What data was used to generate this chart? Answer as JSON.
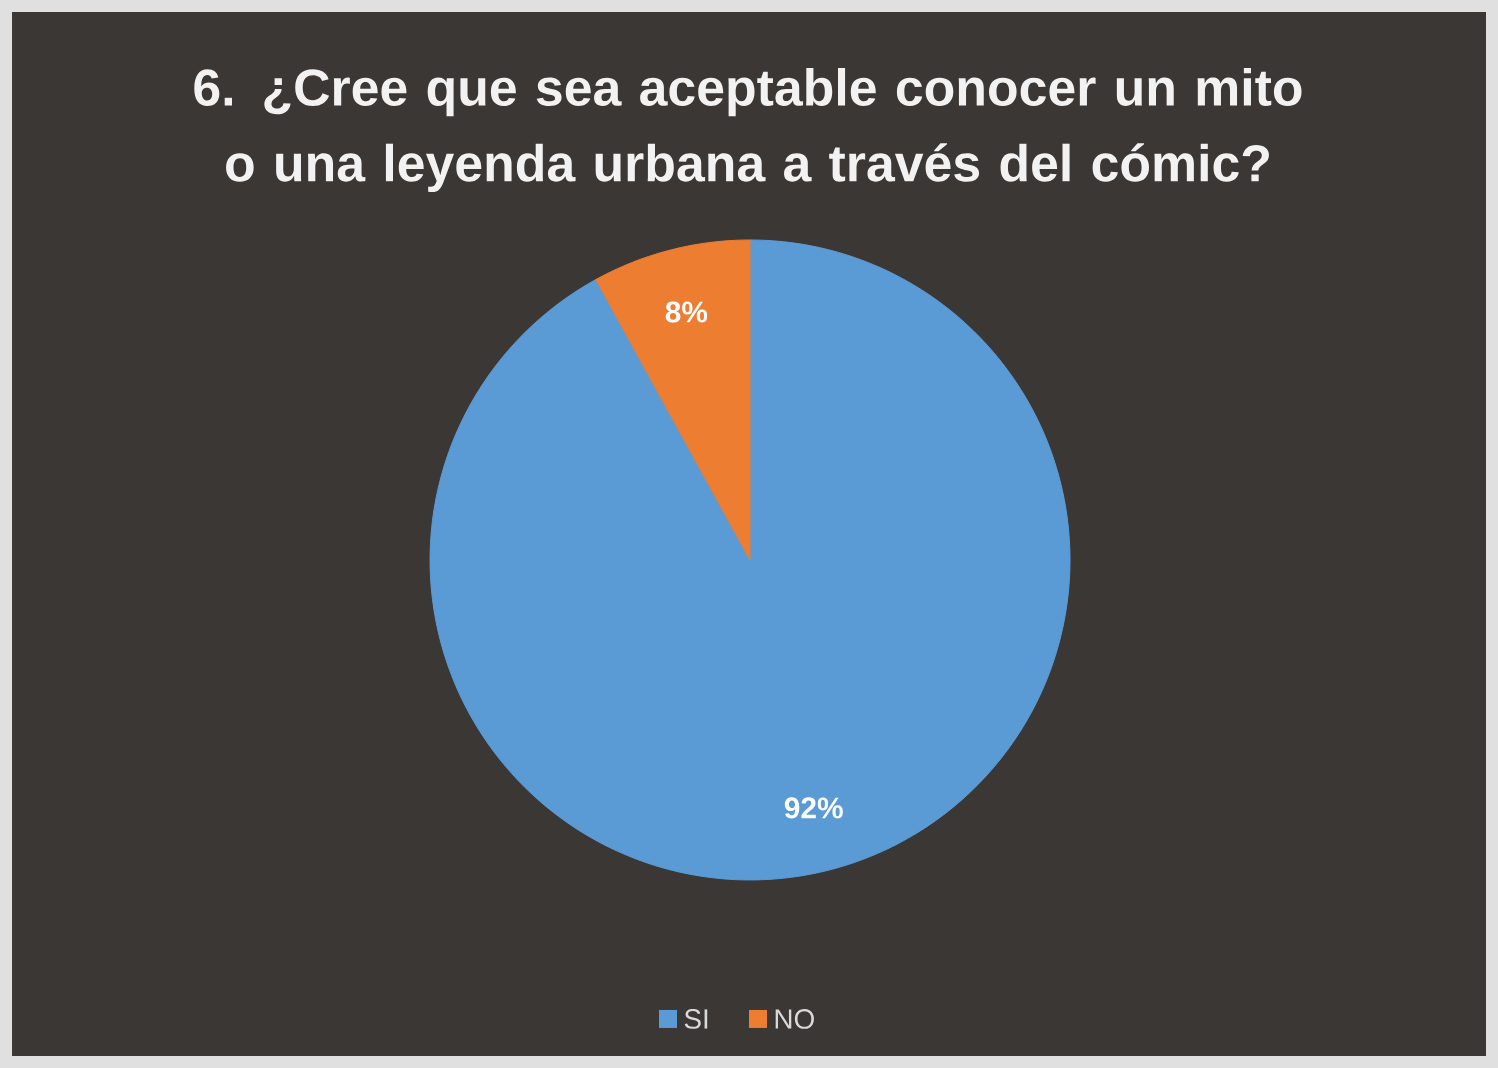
{
  "chart_data": {
    "type": "pie",
    "title": "6. ¿Cree que sea aceptable conocer un mito o una leyenda urbana a través del cómic?",
    "categories": [
      "SI",
      "NO"
    ],
    "values": [
      92,
      8
    ],
    "colors": [
      "#5b9bd5",
      "#ed7d31"
    ],
    "value_labels": [
      "92%",
      "8%"
    ],
    "legend": "bottom"
  }
}
